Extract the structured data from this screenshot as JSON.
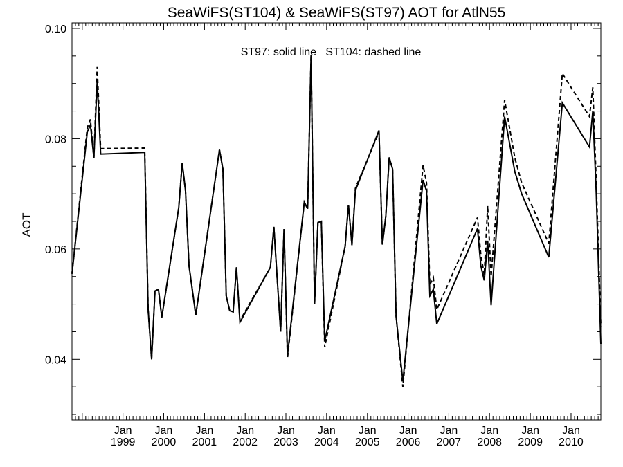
{
  "chart_data": {
    "type": "line",
    "title": "SeaWiFS(ST104) & SeaWiFS(ST97)  AOT for AtlN55",
    "ylabel": "AOT",
    "xlabel": "",
    "annotation": "ST97: solid line   ST104: dashed line",
    "x_domain": [
      "1997-10-01",
      "2010-09-25"
    ],
    "ylim": [
      0.029,
      0.101
    ],
    "y_ticks": [
      {
        "value": 0.04,
        "label": "0.04"
      },
      {
        "value": 0.06,
        "label": "0.06"
      },
      {
        "value": 0.08,
        "label": "0.08"
      },
      {
        "value": 0.1,
        "label": "0.10"
      }
    ],
    "y_minor_step": 0.005,
    "x_ticks": [
      {
        "date": "1999-01-01",
        "month": "Jan",
        "year": "1999"
      },
      {
        "date": "2000-01-01",
        "month": "Jan",
        "year": "2000"
      },
      {
        "date": "2001-01-01",
        "month": "Jan",
        "year": "2001"
      },
      {
        "date": "2002-01-01",
        "month": "Jan",
        "year": "2002"
      },
      {
        "date": "2003-01-01",
        "month": "Jan",
        "year": "2003"
      },
      {
        "date": "2004-01-01",
        "month": "Jan",
        "year": "2004"
      },
      {
        "date": "2005-01-01",
        "month": "Jan",
        "year": "2005"
      },
      {
        "date": "2006-01-01",
        "month": "Jan",
        "year": "2006"
      },
      {
        "date": "2007-01-01",
        "month": "Jan",
        "year": "2007"
      },
      {
        "date": "2008-01-01",
        "month": "Jan",
        "year": "2008"
      },
      {
        "date": "2009-01-01",
        "month": "Jan",
        "year": "2009"
      },
      {
        "date": "2010-01-01",
        "month": "Jan",
        "year": "2010"
      }
    ],
    "grid": false,
    "series": [
      {
        "name": "ST97",
        "style": "solid",
        "color": "#000000",
        "points": [
          [
            "1997-10-01",
            0.0555
          ],
          [
            "1998-02-15",
            0.0812
          ],
          [
            "1998-03-15",
            0.0825
          ],
          [
            "1998-04-15",
            0.0765
          ],
          [
            "1998-05-15",
            0.0905
          ],
          [
            "1998-06-15",
            0.0772
          ],
          [
            "1999-07-15",
            0.0775
          ],
          [
            "1999-08-15",
            0.049
          ],
          [
            "1999-09-15",
            0.04
          ],
          [
            "1999-10-15",
            0.0524
          ],
          [
            "1999-11-15",
            0.0527
          ],
          [
            "1999-12-15",
            0.0476
          ],
          [
            "2000-05-15",
            0.0675
          ],
          [
            "2000-06-15",
            0.0756
          ],
          [
            "2000-07-15",
            0.0705
          ],
          [
            "2000-08-15",
            0.057
          ],
          [
            "2000-10-15",
            0.048
          ],
          [
            "2001-05-15",
            0.078
          ],
          [
            "2001-06-15",
            0.0745
          ],
          [
            "2001-07-15",
            0.0515
          ],
          [
            "2001-08-15",
            0.0488
          ],
          [
            "2001-09-15",
            0.0486
          ],
          [
            "2001-10-15",
            0.0567
          ],
          [
            "2001-11-15",
            0.0467
          ],
          [
            "2002-08-15",
            0.0567
          ],
          [
            "2002-09-15",
            0.064
          ],
          [
            "2002-11-15",
            0.045
          ],
          [
            "2002-12-15",
            0.0636
          ],
          [
            "2003-01-15",
            0.0407
          ],
          [
            "2003-06-15",
            0.0685
          ],
          [
            "2003-07-15",
            0.0673
          ],
          [
            "2003-08-15",
            0.0952
          ],
          [
            "2003-09-15",
            0.05
          ],
          [
            "2003-10-15",
            0.0648
          ],
          [
            "2003-11-15",
            0.065
          ],
          [
            "2003-12-15",
            0.0433
          ],
          [
            "2004-06-15",
            0.0605
          ],
          [
            "2004-07-15",
            0.068
          ],
          [
            "2004-08-15",
            0.0607
          ],
          [
            "2004-09-15",
            0.0706
          ],
          [
            "2005-04-15",
            0.0815
          ],
          [
            "2005-05-15",
            0.0608
          ],
          [
            "2005-06-15",
            0.066
          ],
          [
            "2005-07-15",
            0.0766
          ],
          [
            "2005-08-15",
            0.0745
          ],
          [
            "2005-09-15",
            0.0478
          ],
          [
            "2005-11-15",
            0.036
          ],
          [
            "2006-05-15",
            0.0725
          ],
          [
            "2006-06-15",
            0.0705
          ],
          [
            "2006-07-15",
            0.0515
          ],
          [
            "2006-08-15",
            0.0527
          ],
          [
            "2006-09-15",
            0.0464
          ],
          [
            "2007-09-15",
            0.0637
          ],
          [
            "2007-10-15",
            0.057
          ],
          [
            "2007-11-15",
            0.0543
          ],
          [
            "2007-12-15",
            0.0615
          ],
          [
            "2008-01-15",
            0.0498
          ],
          [
            "2008-05-15",
            0.084
          ],
          [
            "2008-08-15",
            0.074
          ],
          [
            "2008-10-15",
            0.07
          ],
          [
            "2009-06-15",
            0.0585
          ],
          [
            "2009-10-15",
            0.0865
          ],
          [
            "2010-06-15",
            0.0785
          ],
          [
            "2010-07-15",
            0.085
          ],
          [
            "2010-08-15",
            0.07
          ],
          [
            "2010-09-25",
            0.0428
          ]
        ]
      },
      {
        "name": "ST104",
        "style": "dashed",
        "color": "#000000",
        "points": [
          [
            "1997-10-01",
            0.0555
          ],
          [
            "1998-02-15",
            0.082
          ],
          [
            "1998-03-15",
            0.0835
          ],
          [
            "1998-04-15",
            0.0765
          ],
          [
            "1998-05-15",
            0.093
          ],
          [
            "1998-06-15",
            0.0782
          ],
          [
            "1999-07-15",
            0.0783
          ],
          [
            "1999-08-15",
            0.049
          ],
          [
            "1999-09-15",
            0.04
          ],
          [
            "1999-10-15",
            0.0524
          ],
          [
            "1999-11-15",
            0.0527
          ],
          [
            "1999-12-15",
            0.0476
          ],
          [
            "2000-05-15",
            0.0675
          ],
          [
            "2000-06-15",
            0.0756
          ],
          [
            "2000-07-15",
            0.0705
          ],
          [
            "2000-08-15",
            0.057
          ],
          [
            "2000-10-15",
            0.048
          ],
          [
            "2001-05-15",
            0.078
          ],
          [
            "2001-06-15",
            0.0745
          ],
          [
            "2001-07-15",
            0.0515
          ],
          [
            "2001-08-15",
            0.0488
          ],
          [
            "2001-09-15",
            0.0486
          ],
          [
            "2001-10-15",
            0.0567
          ],
          [
            "2001-11-15",
            0.047
          ],
          [
            "2002-08-15",
            0.0567
          ],
          [
            "2002-09-15",
            0.064
          ],
          [
            "2002-11-15",
            0.045
          ],
          [
            "2002-12-15",
            0.0636
          ],
          [
            "2003-01-15",
            0.0402
          ],
          [
            "2003-06-15",
            0.0685
          ],
          [
            "2003-07-15",
            0.0673
          ],
          [
            "2003-08-15",
            0.0952
          ],
          [
            "2003-09-15",
            0.05
          ],
          [
            "2003-10-15",
            0.0648
          ],
          [
            "2003-11-15",
            0.065
          ],
          [
            "2003-12-15",
            0.0422
          ],
          [
            "2004-06-15",
            0.0605
          ],
          [
            "2004-07-15",
            0.068
          ],
          [
            "2004-08-15",
            0.0607
          ],
          [
            "2004-09-15",
            0.071
          ],
          [
            "2005-04-15",
            0.0812
          ],
          [
            "2005-05-15",
            0.0608
          ],
          [
            "2005-06-15",
            0.066
          ],
          [
            "2005-07-15",
            0.0766
          ],
          [
            "2005-08-15",
            0.0745
          ],
          [
            "2005-09-15",
            0.0478
          ],
          [
            "2005-11-15",
            0.035
          ],
          [
            "2006-05-15",
            0.0752
          ],
          [
            "2006-06-15",
            0.072
          ],
          [
            "2006-07-15",
            0.0535
          ],
          [
            "2006-08-15",
            0.0548
          ],
          [
            "2006-09-15",
            0.049
          ],
          [
            "2007-09-15",
            0.0657
          ],
          [
            "2007-10-15",
            0.059
          ],
          [
            "2007-11-15",
            0.0553
          ],
          [
            "2007-12-15",
            0.0678
          ],
          [
            "2008-01-15",
            0.055
          ],
          [
            "2008-05-15",
            0.087
          ],
          [
            "2008-08-15",
            0.0765
          ],
          [
            "2008-10-15",
            0.072
          ],
          [
            "2009-06-15",
            0.061
          ],
          [
            "2009-10-15",
            0.0918
          ],
          [
            "2010-06-15",
            0.084
          ],
          [
            "2010-07-15",
            0.0893
          ],
          [
            "2010-08-15",
            0.072
          ],
          [
            "2010-09-25",
            0.046
          ]
        ]
      }
    ]
  }
}
